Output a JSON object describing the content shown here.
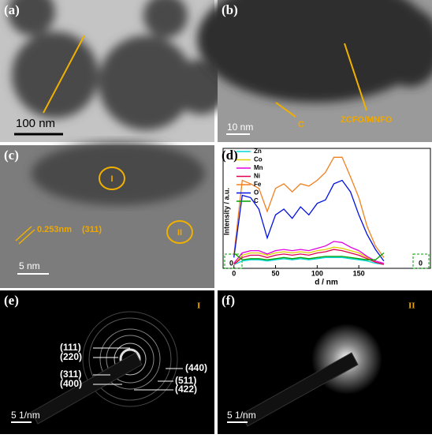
{
  "panels": {
    "a": {
      "label": "(a)",
      "scale": "100 nm"
    },
    "b": {
      "label": "(b)",
      "scale": "10 nm",
      "carbon": "C",
      "phase": "ZCFO/MNFO"
    },
    "c": {
      "label": "(c)",
      "region_1": "I",
      "region_2": "II",
      "spacing": "0.253nm",
      "plane": "(311)",
      "scale": "5 nm"
    },
    "d": {
      "label": "(d)"
    },
    "e": {
      "label": "(e)",
      "region": "I",
      "rings": [
        "(111)",
        "(220)",
        "(311)",
        "(400)",
        "(440)",
        "(511)",
        "(422)"
      ],
      "scale": "5 1/nm"
    },
    "f": {
      "label": "(f)",
      "region": "II",
      "scale": "5 1/nm"
    }
  },
  "chart_data": {
    "type": "line",
    "xlabel": "d / nm",
    "ylabel": "Intensity / a.u.",
    "x": [
      0,
      10,
      20,
      30,
      40,
      50,
      60,
      70,
      80,
      90,
      100,
      110,
      120,
      130,
      140,
      150,
      160,
      170,
      180
    ],
    "xlim": [
      -13,
      236
    ],
    "xticks": [
      0,
      50,
      100,
      150
    ],
    "ylim": [
      0,
      100
    ],
    "annotations": [
      "0",
      "0"
    ],
    "series": [
      {
        "name": "Zn",
        "color": "#00d8d8",
        "values": [
          2,
          5,
          6,
          6,
          5,
          6,
          7,
          6,
          7,
          6,
          7,
          8,
          8,
          8,
          7,
          6,
          5,
          3,
          2
        ]
      },
      {
        "name": "Co",
        "color": "#e0d000",
        "values": [
          2,
          10,
          12,
          12,
          10,
          12,
          13,
          12,
          13,
          12,
          14,
          15,
          17,
          16,
          14,
          12,
          8,
          4,
          2
        ]
      },
      {
        "name": "Mn",
        "color": "#e000e0",
        "values": [
          3,
          12,
          14,
          14,
          11,
          14,
          15,
          14,
          15,
          14,
          16,
          18,
          22,
          21,
          17,
          14,
          9,
          5,
          3
        ]
      },
      {
        "name": "Ni",
        "color": "#e00050",
        "values": [
          2,
          8,
          10,
          10,
          8,
          10,
          11,
          10,
          11,
          10,
          12,
          13,
          15,
          14,
          12,
          10,
          7,
          4,
          2
        ]
      },
      {
        "name": "Fe",
        "color": "#f08020",
        "values": [
          10,
          75,
          72,
          68,
          48,
          68,
          72,
          65,
          72,
          70,
          75,
          82,
          95,
          95,
          78,
          60,
          35,
          18,
          8
        ]
      },
      {
        "name": "O",
        "color": "#0010e0",
        "values": [
          8,
          62,
          60,
          50,
          25,
          45,
          50,
          42,
          52,
          45,
          55,
          58,
          72,
          75,
          65,
          45,
          28,
          15,
          5
        ]
      },
      {
        "name": "C",
        "color": "#00a000",
        "values": [
          12,
          6,
          7,
          7,
          6,
          7,
          8,
          7,
          8,
          7,
          8,
          9,
          9,
          9,
          8,
          7,
          6,
          6,
          12
        ]
      }
    ]
  }
}
